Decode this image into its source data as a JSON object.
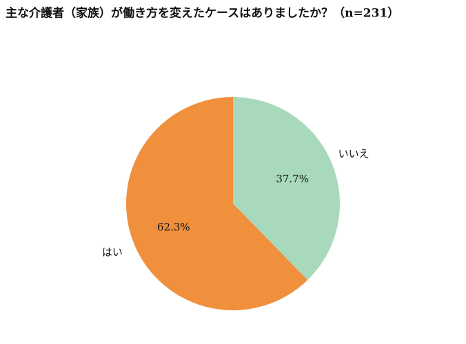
{
  "chart_data": {
    "type": "pie",
    "title": "主な介護者（家族）が働き方を変えたケースはありましたか？（n=231）",
    "categories": [
      "いいえ",
      "はい"
    ],
    "values": [
      37.7,
      62.3
    ],
    "value_labels": [
      "37.7%",
      "62.3%"
    ],
    "colors": [
      "#a8d9bc",
      "#f08f3c"
    ]
  }
}
